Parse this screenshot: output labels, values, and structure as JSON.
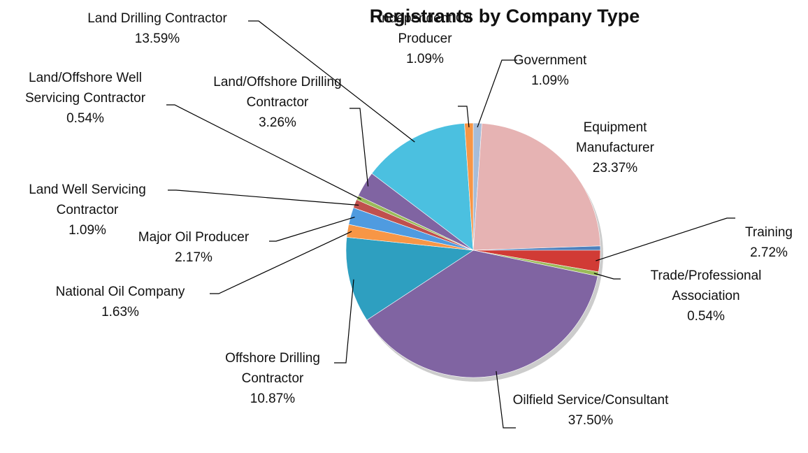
{
  "chart_data": {
    "type": "pie",
    "title": "Registrants by Company Type",
    "categories": [
      "Government",
      "Equipment Manufacturer",
      null,
      "Training",
      "Trade/Professional Association",
      "Oilfield Service/Consultant",
      "Offshore Drilling Contractor",
      "National Oil Company",
      "Major Oil Producer",
      "Land Well Servicing Contractor",
      "Land/Offshore Well Servicing Contractor",
      "Land/Offshore Drilling Contractor",
      "Land Drilling Contractor",
      "Independent Oil Producer"
    ],
    "values": [
      1.09,
      23.37,
      0.54,
      2.72,
      0.54,
      37.5,
      10.87,
      1.63,
      2.17,
      1.09,
      0.54,
      3.26,
      13.59,
      1.09
    ],
    "value_labels": [
      "1.09%",
      "23.37%",
      null,
      "2.72%",
      "0.54%",
      "37.50%",
      "10.87%",
      "1.63%",
      "2.17%",
      "1.09%",
      "0.54%",
      "3.26%",
      "13.59%",
      "1.09%"
    ],
    "colors": [
      "#a6bcd8",
      "#e6b3b3",
      "#4f81bd",
      "#d13b35",
      "#9bbb59",
      "#8064a2",
      "#2e9fc0",
      "#f79646",
      "#4f9be0",
      "#c0504d",
      "#9bbb59",
      "#8064a2",
      "#4bc0e0",
      "#f79646"
    ]
  }
}
